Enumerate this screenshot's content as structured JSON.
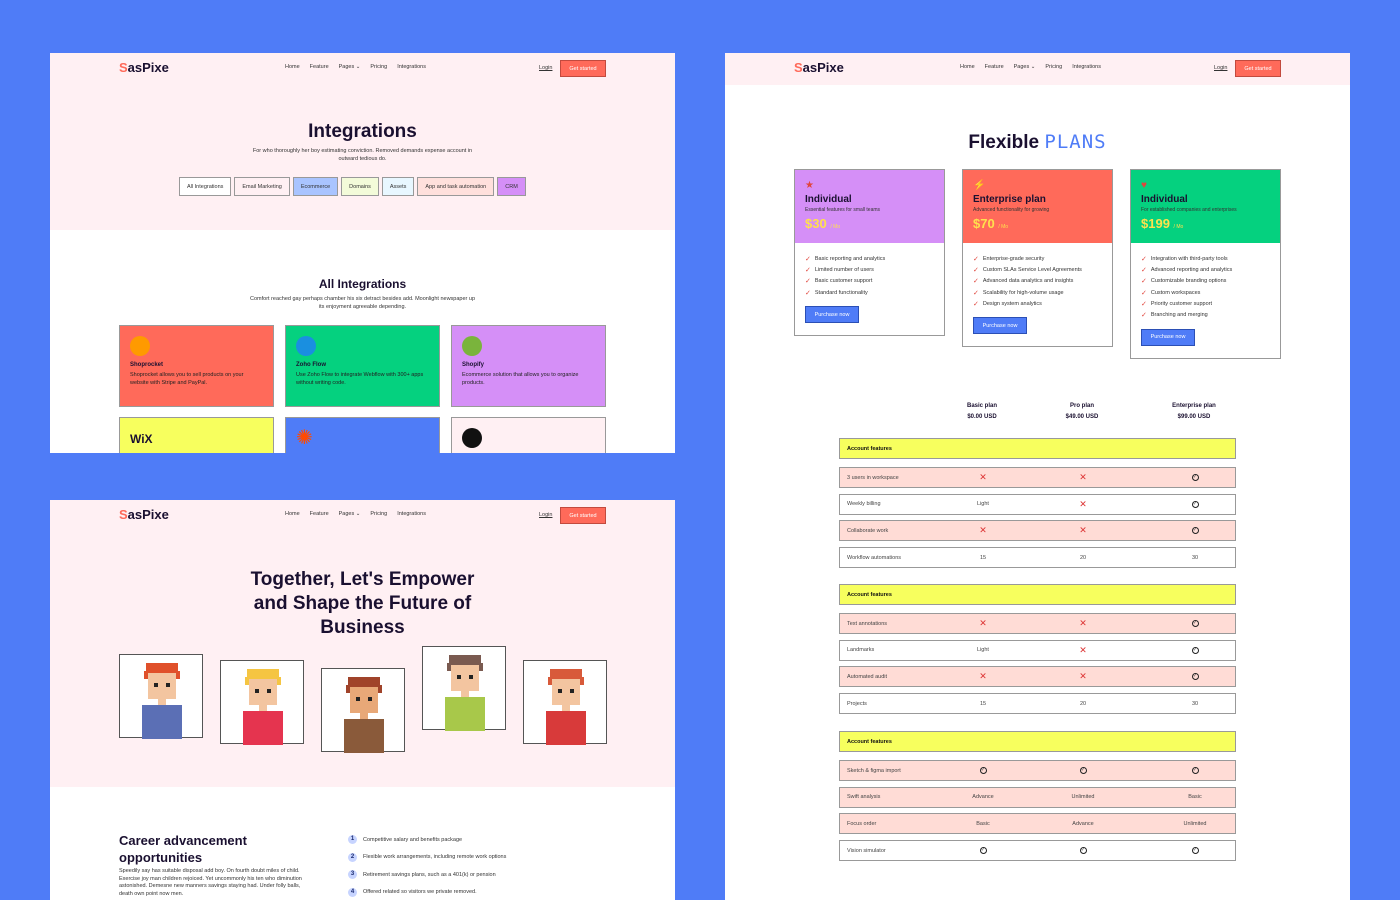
{
  "brand": {
    "logo_letter": "S",
    "logo_rest": "asPixe"
  },
  "nav": {
    "items": [
      "Home",
      "Feature",
      "Pages",
      "Pricing",
      "Integrations"
    ],
    "login": "Login",
    "cta": "Get started"
  },
  "colors": {
    "background": "#4f7cf7",
    "accent": "#ff6a5a",
    "blue": "#4f7cf7",
    "yellow": "#f7ff5e",
    "pink": "#fff0f3"
  },
  "integrations_page": {
    "title": "Integrations",
    "subtitle": "For who thoroughly her boy estimating conviction. Removed demands expense account in outward tedious do.",
    "filters": [
      {
        "label": "All Integrations",
        "color": "#ffffff"
      },
      {
        "label": "Email Marketing",
        "color": "#fff0f3"
      },
      {
        "label": "Ecommerce",
        "color": "#a9c4ff"
      },
      {
        "label": "Domains",
        "color": "#f3fbd9"
      },
      {
        "label": "Assets",
        "color": "#e8f7ff"
      },
      {
        "label": "App and task automation",
        "color": "#ffe0dc"
      },
      {
        "label": "CRM",
        "color": "#d58ff7"
      }
    ],
    "all_title": "All Integrations",
    "all_subtitle": "Comfort reached gay perhaps chamber his six detract besides add. Moonlight newspaper up its enjoyment agreeable depending.",
    "cards": [
      {
        "name": "Shoprocket",
        "desc": "Shoprocket allows you to sell products on your website with Stripe and PayPal.",
        "color": "#ff6a5a",
        "icon": "shoprocket-icon",
        "icon_color": "#ff9a00"
      },
      {
        "name": "Zoho Flow",
        "desc": "Use Zoho Flow to integrate Webflow with 300+ apps without writing code.",
        "color": "#05d17f",
        "icon": "zoho-flow-icon",
        "icon_color": "#1a8fe0"
      },
      {
        "name": "Shopify",
        "desc": "Ecommerce solution that allows you to organize products.",
        "color": "#d58ff7",
        "icon": "shopify-icon",
        "icon_color": "#7ab43c"
      },
      {
        "name": "",
        "desc": "",
        "color": "#f7ff5e",
        "icon": "wix-icon",
        "icon_text": "WiX"
      },
      {
        "name": "",
        "desc": "",
        "color": "#4f7cf7",
        "icon": "zapier-icon",
        "icon_color": "#ff4a00"
      },
      {
        "name": "",
        "desc": "",
        "color": "#fff0f3",
        "icon": "integration-icon",
        "icon_color": "#111"
      }
    ]
  },
  "about_page": {
    "headline": [
      "Together, Let's Empower",
      "and Shape the Future of",
      "Business"
    ],
    "avatars": [
      {
        "hair": "#e0502a",
        "skin": "#f3c5a0",
        "shirt": "#5b6fb5"
      },
      {
        "hair": "#f5c542",
        "skin": "#f3c5a0",
        "shirt": "#e5344f"
      },
      {
        "hair": "#a0432a",
        "skin": "#e8a878",
        "shirt": "#8a5a3a"
      },
      {
        "hair": "#7a5a50",
        "skin": "#f3c5a0",
        "shirt": "#a8c84a"
      },
      {
        "hair": "#d85a3a",
        "skin": "#f3c5a0",
        "shirt": "#d83a3a"
      }
    ],
    "career_title": "Career advancement opportunities",
    "career_text": "Speedily say has suitable disposal add boy. On fourth doubt miles of child. Exercise joy man children rejoiced. Yet uncommonly his ten who diminution astonished. Demesne new manners savings staying had. Under folly balls, death own point now men.",
    "benefits": [
      {
        "n": "1",
        "text": "Competitive salary and benefits package"
      },
      {
        "n": "2",
        "text": "Flexible work arrangements, including remote work options"
      },
      {
        "n": "3",
        "text": "Retirement savings plans, such as a 401(k) or pension"
      },
      {
        "n": "4",
        "text": "Offered related so visitors we private removed."
      }
    ]
  },
  "pricing_page": {
    "title_a": "Flexible",
    "title_b": "PLANS",
    "plans": [
      {
        "name": "Individual",
        "sub": "Essential features for small teams",
        "price": "$30",
        "per": "/ Mo",
        "color": "#d58ff7",
        "icon": "star-icon",
        "button": "Purchase now",
        "features": [
          "Basic reporting and analytics",
          "Limited number of users",
          "Basic customer support",
          "Standard functionality"
        ]
      },
      {
        "name": "Enterprise plan",
        "sub": "Advanced functionality for growing",
        "price": "$70",
        "per": "/ Mo",
        "color": "#ff6a5a",
        "icon": "lightning-icon",
        "button": "Purchase now",
        "features": [
          "Enterprise-grade security",
          "Custom SLAs Service Level Agreements",
          "Advanced data analytics and insights",
          "Scalability for high-volume usage",
          "Design system analytics"
        ]
      },
      {
        "name": "Individual",
        "sub": "For established companies and enterprises",
        "price": "$199",
        "per": "/ Mo",
        "color": "#05d17f",
        "icon": "heart-icon",
        "button": "Purchase now",
        "features": [
          "Integration with third-party tools",
          "Advanced reporting and analytics",
          "Customizable branding options",
          "Custom workspaces",
          "Priority customer support",
          "Branching and merging"
        ]
      }
    ],
    "compare_headers": [
      {
        "name": "Basic plan",
        "price": "$0.00 USD"
      },
      {
        "name": "Pro plan",
        "price": "$49.00 USD"
      },
      {
        "name": "Enterprise plan",
        "price": "$99.00 USD"
      }
    ],
    "sections": [
      {
        "title": "Account features",
        "rows": [
          {
            "label": "3 users in workspace",
            "values": [
              "x",
              "x",
              "check"
            ],
            "pink": true
          },
          {
            "label": "Weekly billing",
            "values": [
              "Light",
              "x",
              "check"
            ],
            "pink": false
          },
          {
            "label": "Collaborate work",
            "values": [
              "x",
              "x",
              "check"
            ],
            "pink": true
          },
          {
            "label": "Workflow automations",
            "values": [
              "15",
              "20",
              "30"
            ],
            "pink": false
          }
        ]
      },
      {
        "title": "Account features",
        "rows": [
          {
            "label": "Text annotations",
            "values": [
              "x",
              "x",
              "check"
            ],
            "pink": true
          },
          {
            "label": "Landmarks",
            "values": [
              "Light",
              "x",
              "check"
            ],
            "pink": false
          },
          {
            "label": "Automated audit",
            "values": [
              "x",
              "x",
              "check"
            ],
            "pink": true
          },
          {
            "label": "Projects",
            "values": [
              "15",
              "20",
              "30"
            ],
            "pink": false
          }
        ]
      },
      {
        "title": "Account features",
        "rows": [
          {
            "label": "Sketch & figma import",
            "values": [
              "check",
              "check",
              "check"
            ],
            "pink": true
          },
          {
            "label": "Swift analysis",
            "values": [
              "Advance",
              "Unlimited",
              "Basic"
            ],
            "pink": true
          },
          {
            "label": "Focus order",
            "values": [
              "Basic",
              "Advance",
              "Unlimited"
            ],
            "pink": true
          },
          {
            "label": "Vision simulator",
            "values": [
              "check",
              "check",
              "check"
            ],
            "pink": false
          }
        ]
      }
    ]
  }
}
